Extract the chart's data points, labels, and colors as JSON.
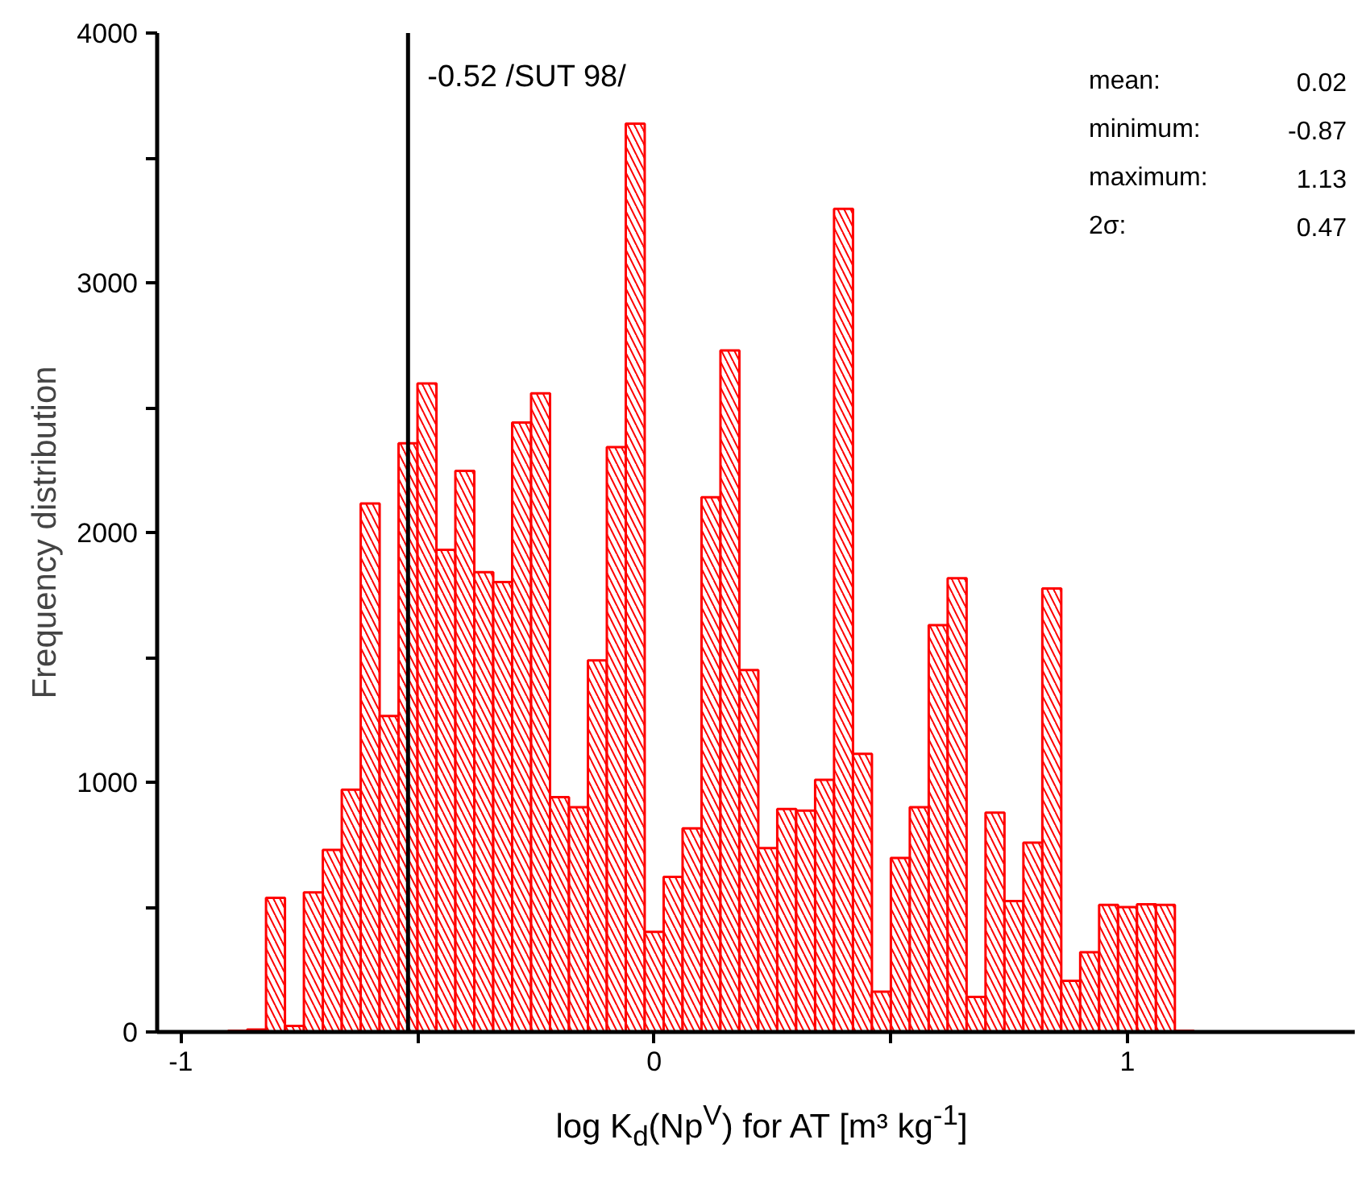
{
  "chart_data": {
    "type": "histogram",
    "xlabel": "log K$_{d}$(Np$^{V}$) for AT [m³ kg$^{-1}$]",
    "ylabel": "Frequency distribution",
    "bins": [
      -0.9,
      -0.86,
      -0.82,
      -0.78,
      -0.74,
      -0.7,
      -0.66,
      -0.62,
      -0.58,
      -0.54,
      -0.5,
      -0.46,
      -0.42,
      -0.38,
      -0.34,
      -0.3,
      -0.26,
      -0.22,
      -0.18,
      -0.14,
      -0.1,
      -0.06,
      -0.02,
      0.02,
      0.06,
      0.1,
      0.14,
      0.18,
      0.22,
      0.26,
      0.3,
      0.34,
      0.38,
      0.42,
      0.46,
      0.5,
      0.54,
      0.58,
      0.62,
      0.66,
      0.7,
      0.74,
      0.78,
      0.82,
      0.86,
      0.9,
      0.94,
      0.98,
      1.02,
      1.06,
      1.1,
      1.14
    ],
    "values": [
      5,
      10,
      537,
      24,
      559,
      729,
      970,
      2116,
      1265,
      2357,
      2597,
      1931,
      2247,
      1841,
      1802,
      2440,
      2557,
      940,
      900,
      1488,
      2342,
      3637,
      401,
      621,
      815,
      2141,
      2729,
      1449,
      736,
      893,
      886,
      1010,
      3296,
      1114,
      161,
      697,
      900,
      1629,
      1817,
      140,
      878,
      524,
      758,
      1776,
      205,
      319,
      509,
      500,
      511,
      509,
      5
    ],
    "color": "#ff0000",
    "xlim": [
      -1.05,
      1.48
    ],
    "ylim": [
      0,
      4000
    ],
    "xticks": [
      -1,
      {
        "value": -0.5,
        "label": null
      },
      0,
      {
        "value": 0.5,
        "label": null
      },
      1
    ],
    "yticks": [
      0,
      {
        "value": 500,
        "label": null
      },
      1000,
      {
        "value": 1500,
        "label": null
      },
      2000,
      {
        "value": 2500,
        "label": null
      },
      3000,
      {
        "value": 3500,
        "label": null
      },
      4000
    ],
    "grid": false,
    "ref_lines": [
      {
        "axis": "x",
        "value": -0.52,
        "label": "-0.52 /SUT 98/",
        "color": "#000000"
      }
    ],
    "annotations": [
      "mean:",
      "0.02",
      "minimum:",
      "-0.87",
      "maximum:",
      "1.13",
      "2σ:",
      "0.47"
    ]
  }
}
